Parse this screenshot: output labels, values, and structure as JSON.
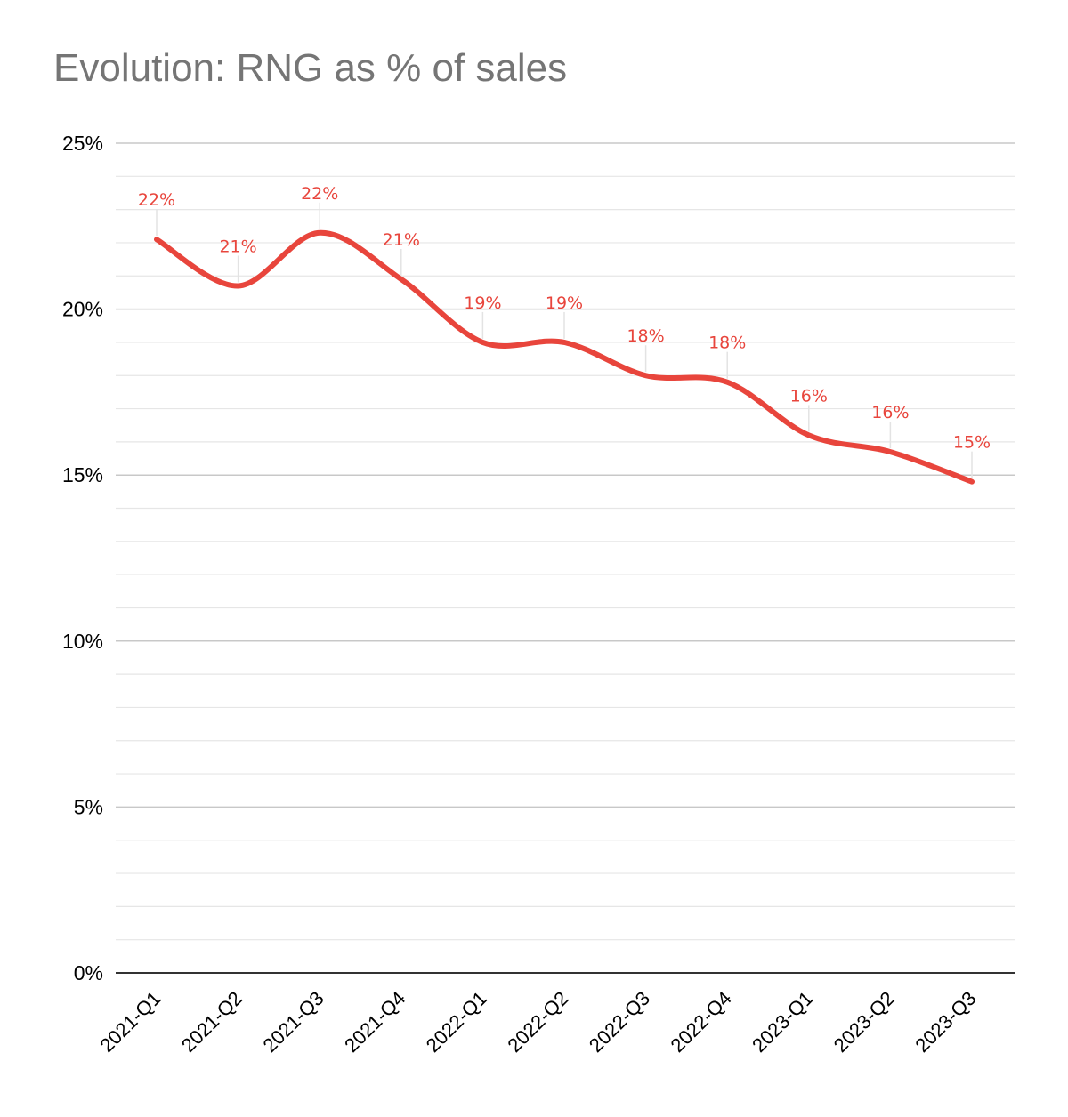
{
  "chart_data": {
    "type": "line",
    "title": "Evolution: RNG as % of sales",
    "xlabel": "",
    "ylabel": "",
    "categories": [
      "2021-Q1",
      "2021-Q2",
      "2021-Q3",
      "2021-Q4",
      "2022-Q1",
      "2022-Q2",
      "2022-Q3",
      "2022-Q4",
      "2023-Q1",
      "2023-Q2",
      "2023-Q3"
    ],
    "series": [
      {
        "values": [
          22.1,
          20.7,
          22.3,
          20.9,
          19.0,
          19.0,
          18.0,
          17.8,
          16.2,
          15.7,
          14.8
        ],
        "data_labels": [
          "22%",
          "21%",
          "22%",
          "21%",
          "19%",
          "19%",
          "18%",
          "18%",
          "16%",
          "16%",
          "15%"
        ],
        "color": "#e8453c"
      }
    ],
    "ylim": [
      0,
      25
    ],
    "y_ticks": [
      "0%",
      "5%",
      "10%",
      "15%",
      "20%",
      "25%"
    ],
    "y_tick_values": [
      0,
      5,
      10,
      15,
      20,
      25
    ],
    "grid": true,
    "minor_grid": true,
    "smooth": true,
    "x_tick_rotation": "45deg"
  },
  "colors": {
    "line": "#e8453c",
    "label": "#e8453c",
    "major_grid": "#c8c8c8",
    "minor_grid": "#e6e6e6",
    "axis": "#333333",
    "title": "#757575"
  }
}
